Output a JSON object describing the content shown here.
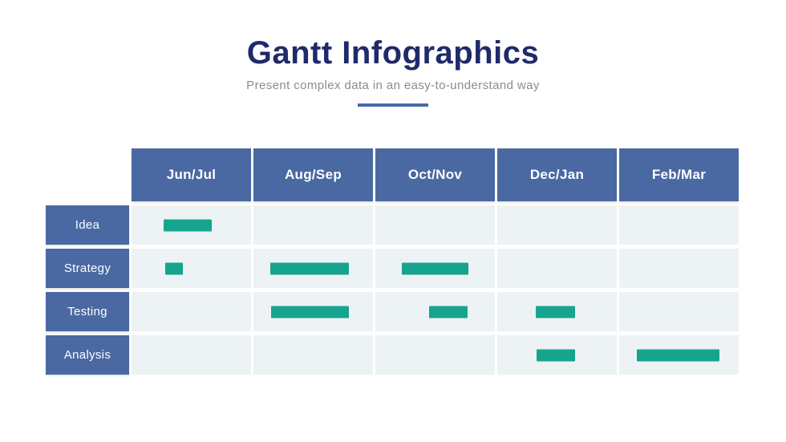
{
  "header": {
    "title": "Gantt Infographics",
    "subtitle": "Present complex data in an easy-to-understand way"
  },
  "colors": {
    "title_navy": "#1e2a6a",
    "steel_blue_header": "#4a69a2",
    "underline_blue": "#4a69a8",
    "cell_background": "#edf2f4",
    "bar_teal": "#16a48e",
    "subtitle_gray": "#8c8c8c"
  },
  "chart_data": {
    "type": "gantt",
    "title": "Gantt Infographics",
    "subtitle": "Present complex data in an easy-to-understand way",
    "columns": [
      "Jun/Jul",
      "Aug/Sep",
      "Oct/Nov",
      "Dec/Jan",
      "Feb/Mar"
    ],
    "rows": [
      {
        "label": "Idea",
        "bars": [
          {
            "col": 0,
            "start_pct": 27,
            "width_pct": 40
          }
        ]
      },
      {
        "label": "Strategy",
        "bars": [
          {
            "col": 0,
            "start_pct": 28,
            "width_pct": 15
          },
          {
            "col": 1,
            "start_pct": 14,
            "width_pct": 66
          },
          {
            "col": 2,
            "start_pct": 22,
            "width_pct": 56
          }
        ]
      },
      {
        "label": "Testing",
        "bars": [
          {
            "col": 1,
            "start_pct": 15,
            "width_pct": 65
          },
          {
            "col": 2,
            "start_pct": 45,
            "width_pct": 32
          },
          {
            "col": 3,
            "start_pct": 32,
            "width_pct": 33
          }
        ]
      },
      {
        "label": "Analysis",
        "bars": [
          {
            "col": 3,
            "start_pct": 33,
            "width_pct": 32
          },
          {
            "col": 4,
            "start_pct": 15,
            "width_pct": 69
          }
        ]
      }
    ],
    "layout": {
      "grid": "off",
      "legend": "none",
      "bar_unit": "percent_of_two_month_column"
    }
  }
}
